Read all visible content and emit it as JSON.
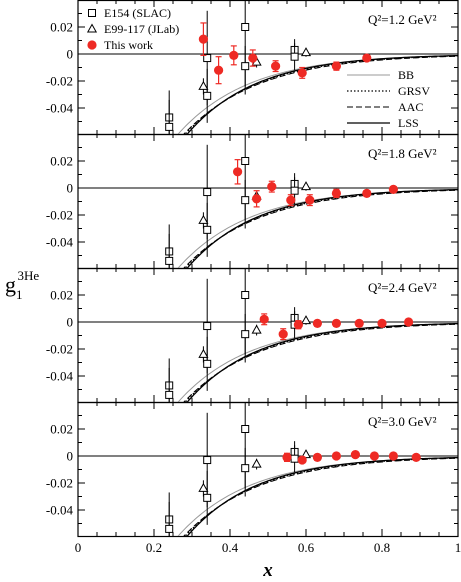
{
  "chart_data": {
    "type": "scatter",
    "xlabel": "x",
    "ylabel": "g1^3He",
    "ylabel_main": "g",
    "ylabel_sub": "1",
    "ylabel_sup": "3He",
    "xlim": [
      0,
      1
    ],
    "ylim": [
      -0.06,
      0.03
    ],
    "x_ticks": [
      "0",
      "0.2",
      "0.4",
      "0.6",
      "0.8",
      "1"
    ],
    "y_ticks": [
      "0.02",
      "0",
      "-0.02",
      "-0.04"
    ],
    "legend_markers": [
      {
        "name": "E154 (SLAC)",
        "marker": "square-open"
      },
      {
        "name": "E99-117 (JLab)",
        "marker": "triangle-open"
      },
      {
        "name": "This work",
        "marker": "circle-filled",
        "color": "#ee2a24"
      }
    ],
    "legend_lines": [
      {
        "name": "BB",
        "style": "solid-light"
      },
      {
        "name": "GRSV",
        "style": "dotted"
      },
      {
        "name": "AAC",
        "style": "dashed"
      },
      {
        "name": "LSS",
        "style": "solid"
      }
    ],
    "colors": {
      "this_work": "#ee2a24",
      "axes": "#000000",
      "curve_light": "#999999"
    },
    "E154": [
      {
        "x": 0.24,
        "y": -0.047,
        "err": 0.02
      },
      {
        "x": 0.34,
        "y": -0.003,
        "err": 0.035
      },
      {
        "x": 0.44,
        "y": 0.02,
        "err": 0.05
      },
      {
        "x": 0.57,
        "y": 0.003,
        "err": 0.008
      },
      {
        "x": 0.24,
        "y": -0.054,
        "err": 0.02
      },
      {
        "x": 0.34,
        "y": -0.031,
        "err": 0.02
      },
      {
        "x": 0.44,
        "y": -0.009,
        "err": 0.015
      },
      {
        "x": 0.57,
        "y": -0.002,
        "err": 0.01
      }
    ],
    "E99_117": [
      {
        "x": 0.33,
        "y": -0.024,
        "err": 0.006
      },
      {
        "x": 0.47,
        "y": -0.006,
        "err": 0.004
      },
      {
        "x": 0.6,
        "y": 0.001,
        "err": 0.003
      }
    ],
    "curves": {
      "BB": {
        "amplitude": -0.083,
        "decay": 5.3,
        "clip": -0.06
      },
      "GRSV": {
        "amplitude": -0.091,
        "decay": 5.2,
        "clip": -0.06
      },
      "AAC": {
        "amplitude": -0.088,
        "decay": 5.0,
        "clip": -0.06
      },
      "LSS": {
        "amplitude": -0.096,
        "decay": 5.5,
        "clip": -0.06
      }
    },
    "panels": [
      {
        "label": "Q²=1.2 GeV²",
        "this_work": [
          {
            "x": 0.33,
            "y": 0.011,
            "err": 0.012
          },
          {
            "x": 0.37,
            "y": -0.012,
            "err": 0.01
          },
          {
            "x": 0.41,
            "y": -0.001,
            "err": 0.007
          },
          {
            "x": 0.46,
            "y": -0.003,
            "err": 0.006
          },
          {
            "x": 0.52,
            "y": -0.009,
            "err": 0.004
          },
          {
            "x": 0.59,
            "y": -0.014,
            "err": 0.004
          },
          {
            "x": 0.68,
            "y": -0.009,
            "err": 0.003
          },
          {
            "x": 0.76,
            "y": -0.003,
            "err": 0.002
          }
        ],
        "legend": true
      },
      {
        "label": "Q²=1.8 GeV²",
        "this_work": [
          {
            "x": 0.42,
            "y": 0.012,
            "err": 0.009
          },
          {
            "x": 0.47,
            "y": -0.008,
            "err": 0.006
          },
          {
            "x": 0.51,
            "y": 0.001,
            "err": 0.004
          },
          {
            "x": 0.56,
            "y": -0.009,
            "err": 0.004
          },
          {
            "x": 0.61,
            "y": -0.009,
            "err": 0.004
          },
          {
            "x": 0.68,
            "y": -0.004,
            "err": 0.003
          },
          {
            "x": 0.76,
            "y": -0.004,
            "err": 0.002
          },
          {
            "x": 0.83,
            "y": -0.001,
            "err": 0.002
          }
        ],
        "legend": false
      },
      {
        "label": "Q²=2.4 GeV²",
        "this_work": [
          {
            "x": 0.49,
            "y": 0.002,
            "err": 0.004
          },
          {
            "x": 0.54,
            "y": -0.009,
            "err": 0.004
          },
          {
            "x": 0.58,
            "y": -0.002,
            "err": 0.003
          },
          {
            "x": 0.63,
            "y": -0.001,
            "err": 0.002
          },
          {
            "x": 0.68,
            "y": -0.001,
            "err": 0.002
          },
          {
            "x": 0.74,
            "y": -0.001,
            "err": 0.002
          },
          {
            "x": 0.8,
            "y": -0.001,
            "err": 0.002
          },
          {
            "x": 0.87,
            "y": 0.0,
            "err": 0.001
          }
        ],
        "legend": false
      },
      {
        "label": "Q²=3.0 GeV²",
        "this_work": [
          {
            "x": 0.55,
            "y": -0.001,
            "err": 0.003
          },
          {
            "x": 0.59,
            "y": -0.003,
            "err": 0.002
          },
          {
            "x": 0.63,
            "y": -0.001,
            "err": 0.002
          },
          {
            "x": 0.68,
            "y": 0.0,
            "err": 0.002
          },
          {
            "x": 0.73,
            "y": 0.001,
            "err": 0.002
          },
          {
            "x": 0.78,
            "y": 0.0,
            "err": 0.002
          },
          {
            "x": 0.83,
            "y": 0.0,
            "err": 0.001
          },
          {
            "x": 0.89,
            "y": -0.001,
            "err": 0.001
          }
        ],
        "legend": false
      }
    ]
  }
}
